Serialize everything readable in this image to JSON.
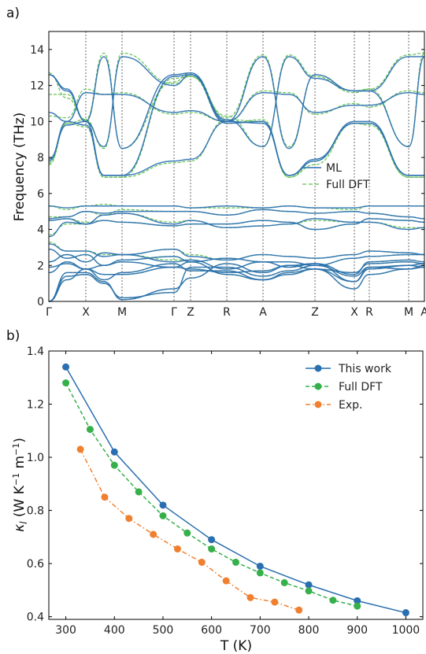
{
  "chart_data": [
    {
      "type": "line",
      "panel_label": "a)",
      "ylabel": "Frequency (THz)",
      "ylim": [
        0,
        15
      ],
      "yticks": [
        0,
        2,
        4,
        6,
        8,
        10,
        12,
        14
      ],
      "k_labels": [
        "Γ",
        "X",
        "M",
        "Γ",
        "Z",
        "R",
        "A",
        "Z",
        "X",
        "R",
        "M",
        "A"
      ],
      "legend": {
        "position": "right",
        "entries": [
          {
            "name": "ML",
            "color": "#2a6fb0",
            "style": "solid"
          },
          {
            "name": "Full DFT",
            "color": "#5cbf4a",
            "style": "dashed"
          }
        ]
      },
      "series": [
        {
          "name": "ML",
          "color": "#2a6fb0",
          "bands": [
            [
              12.6,
              11.8,
              10.0,
              13.6,
              8.5,
              12.6,
              12.7,
              10.0,
              13.6,
              8.5,
              12.6,
              11.7,
              11.7,
              13.6,
              13.6
            ],
            [
              12.6,
              11.7,
              10.0,
              8.6,
              13.6,
              12.0,
              12.6,
              10.1,
              8.6,
              13.6,
              12.4,
              11.7,
              11.7,
              8.6,
              13.6
            ],
            [
              10.5,
              10.0,
              11.6,
              11.5,
              11.5,
              10.5,
              10.6,
              10.0,
              11.6,
              11.5,
              10.5,
              10.9,
              10.9,
              11.6,
              11.5
            ],
            [
              7.9,
              9.8,
              10.0,
              7.0,
              7.0,
              12.5,
              12.6,
              9.9,
              10.0,
              7.0,
              7.9,
              9.9,
              9.9,
              7.0,
              7.0
            ],
            [
              7.8,
              10.0,
              9.8,
              7.0,
              7.0,
              7.8,
              7.9,
              10.0,
              9.9,
              7.0,
              7.8,
              10.0,
              10.0,
              7.0,
              7.0
            ],
            [
              5.3,
              5.2,
              5.3,
              5.3,
              5.3,
              5.3,
              5.2,
              5.3,
              5.2,
              5.3,
              5.2,
              5.2,
              5.3,
              5.3,
              5.3
            ],
            [
              4.6,
              4.7,
              5.0,
              4.9,
              5.0,
              5.0,
              5.0,
              4.8,
              5.1,
              5.0,
              4.9,
              5.0,
              4.9,
              4.7,
              4.6
            ],
            [
              4.5,
              4.6,
              4.3,
              4.5,
              4.4,
              4.2,
              4.3,
              4.3,
              4.5,
              4.4,
              4.0,
              4.3,
              4.6,
              4.5,
              4.4
            ],
            [
              3.6,
              4.4,
              4.3,
              4.8,
              4.9,
              4.3,
              4.5,
              4.1,
              4.2,
              4.3,
              4.6,
              4.4,
              4.4,
              4.0,
              4.1
            ],
            [
              3.2,
              2.8,
              2.8,
              2.5,
              2.6,
              2.9,
              2.5,
              2.3,
              2.6,
              2.5,
              2.4,
              2.6,
              2.8,
              2.7,
              2.6
            ],
            [
              2.9,
              2.4,
              2.6,
              2.0,
              2.3,
              2.5,
              2.2,
              2.4,
              2.2,
              2.2,
              2.0,
              2.4,
              2.5,
              2.6,
              2.6
            ],
            [
              2.2,
              2.6,
              2.2,
              2.7,
              2.6,
              2.2,
              2.3,
              1.8,
              2.2,
              1.9,
              2.1,
              1.5,
              2.2,
              2.3,
              2.2
            ],
            [
              1.9,
              2.1,
              1.8,
              2.0,
              2.2,
              1.9,
              1.8,
              1.6,
              1.7,
              2.0,
              1.8,
              1.6,
              2.1,
              2.2,
              2.1
            ],
            [
              1.6,
              2.2,
              1.8,
              1.2,
              1.6,
              2.1,
              1.7,
              1.7,
              1.2,
              1.5,
              1.8,
              1.1,
              1.8,
              2.0,
              2.1
            ],
            [
              0.0,
              1.2,
              1.8,
              1.5,
              1.5,
              1.9,
              2.2,
              1.5,
              1.2,
              1.6,
              1.8,
              0.7,
              1.5,
              1.8,
              2.0
            ],
            [
              0.0,
              1.4,
              1.5,
              1.0,
              0.2,
              0.5,
              1.9,
              1.9,
              1.4,
              1.7,
              2.0,
              1.4,
              1.9,
              2.0,
              1.9
            ],
            [
              0.0,
              1.6,
              1.6,
              1.1,
              0.1,
              0.7,
              1.3,
              2.1,
              1.6,
              2.0,
              2.1,
              1.1,
              1.9,
              1.8,
              1.9
            ]
          ]
        },
        {
          "name": "Full DFT",
          "color": "#5cbf4a",
          "bands": [
            [
              12.7,
              11.3,
              10.1,
              13.8,
              8.5,
              12.2,
              12.7,
              10.2,
              13.7,
              8.6,
              12.6,
              11.7,
              11.8,
              13.7,
              13.8
            ],
            [
              11.5,
              11.5,
              10.1,
              8.5,
              13.8,
              12.1,
              12.5,
              10.3,
              8.6,
              13.7,
              12.5,
              11.6,
              11.8,
              8.6,
              13.8
            ],
            [
              10.3,
              10.2,
              11.8,
              11.5,
              11.6,
              10.4,
              10.5,
              10.0,
              11.7,
              11.6,
              10.4,
              11.0,
              10.8,
              11.7,
              11.6
            ],
            [
              7.7,
              9.9,
              10.1,
              6.9,
              6.9,
              12.4,
              12.5,
              9.9,
              10.1,
              6.9,
              7.8,
              9.9,
              9.8,
              6.9,
              6.9
            ],
            [
              7.6,
              9.9,
              9.7,
              6.9,
              6.9,
              7.7,
              7.8,
              10.1,
              10.0,
              6.9,
              7.6,
              9.9,
              9.9,
              6.9,
              6.9
            ],
            [
              5.3,
              5.1,
              5.3,
              5.4,
              5.3,
              5.3,
              5.2,
              5.2,
              5.2,
              5.3,
              5.2,
              5.1,
              5.3,
              5.3,
              5.3
            ],
            [
              4.7,
              4.7,
              5.0,
              4.8,
              5.1,
              5.0,
              5.0,
              4.8,
              5.1,
              5.0,
              4.9,
              5.0,
              4.9,
              4.7,
              4.6
            ],
            [
              4.5,
              4.6,
              4.4,
              4.5,
              4.4,
              4.2,
              4.3,
              4.3,
              4.5,
              4.4,
              4.0,
              4.3,
              4.6,
              4.5,
              4.4
            ],
            [
              3.7,
              4.3,
              4.3,
              4.8,
              4.9,
              4.4,
              4.5,
              4.1,
              4.2,
              4.3,
              4.5,
              4.4,
              4.4,
              4.1,
              4.1
            ],
            [
              3.3,
              2.8,
              2.8,
              2.6,
              2.6,
              2.9,
              2.6,
              2.3,
              2.6,
              2.5,
              2.4,
              2.6,
              2.8,
              2.7,
              2.6
            ],
            [
              2.9,
              2.4,
              2.6,
              2.0,
              2.3,
              2.5,
              2.2,
              2.4,
              2.2,
              2.2,
              2.0,
              2.4,
              2.5,
              2.6,
              2.6
            ],
            [
              2.2,
              2.6,
              2.2,
              2.7,
              2.6,
              2.3,
              2.3,
              1.8,
              2.2,
              1.9,
              2.1,
              1.5,
              2.2,
              2.3,
              2.2
            ],
            [
              1.9,
              2.1,
              1.8,
              2.0,
              2.2,
              1.9,
              1.8,
              1.6,
              1.7,
              2.0,
              1.8,
              1.6,
              2.1,
              2.2,
              2.1
            ],
            [
              1.6,
              2.2,
              1.8,
              1.2,
              1.6,
              2.1,
              1.7,
              1.7,
              1.2,
              1.5,
              1.8,
              1.1,
              1.8,
              2.0,
              2.1
            ],
            [
              0.0,
              1.2,
              1.8,
              1.5,
              1.5,
              1.9,
              2.2,
              1.5,
              1.2,
              1.6,
              1.8,
              0.7,
              1.5,
              1.8,
              2.0
            ],
            [
              0.0,
              1.4,
              1.5,
              1.0,
              0.2,
              0.5,
              1.9,
              1.9,
              1.4,
              1.7,
              2.0,
              1.4,
              1.9,
              2.0,
              1.9
            ],
            [
              0.0,
              1.6,
              1.6,
              1.1,
              0.1,
              0.7,
              1.3,
              2.1,
              1.6,
              2.0,
              2.1,
              1.1,
              1.9,
              1.8,
              1.9
            ]
          ]
        }
      ]
    },
    {
      "type": "line",
      "panel_label": "b)",
      "xlabel": "T (K)",
      "ylabel": "κ_l (W K⁻¹ m⁻¹)",
      "xlim": [
        265,
        1035
      ],
      "ylim": [
        0.39,
        1.4
      ],
      "xticks": [
        300,
        400,
        500,
        600,
        700,
        800,
        900,
        1000
      ],
      "yticks": [
        0.4,
        0.6,
        0.8,
        1.0,
        1.2,
        1.4
      ],
      "legend": {
        "position": "top-right"
      },
      "series": [
        {
          "name": "This work",
          "color": "#2a6fb0",
          "style": "solid",
          "x": [
            300,
            400,
            500,
            600,
            700,
            800,
            900,
            1000
          ],
          "y": [
            1.34,
            1.02,
            0.82,
            0.69,
            0.59,
            0.52,
            0.46,
            0.415
          ]
        },
        {
          "name": "Full DFT",
          "color": "#36b04a",
          "style": "dashed",
          "x": [
            300,
            350,
            400,
            450,
            500,
            550,
            600,
            650,
            700,
            750,
            800,
            850,
            900
          ],
          "y": [
            1.28,
            1.105,
            0.97,
            0.87,
            0.78,
            0.715,
            0.655,
            0.605,
            0.565,
            0.528,
            0.497,
            0.462,
            0.44
          ]
        },
        {
          "name": "Exp.",
          "color": "#f08030",
          "style": "dashdot",
          "x": [
            330,
            380,
            430,
            480,
            530,
            580,
            630,
            680,
            730,
            780
          ],
          "y": [
            1.03,
            0.85,
            0.77,
            0.71,
            0.655,
            0.605,
            0.535,
            0.472,
            0.455,
            0.425
          ]
        }
      ]
    }
  ]
}
